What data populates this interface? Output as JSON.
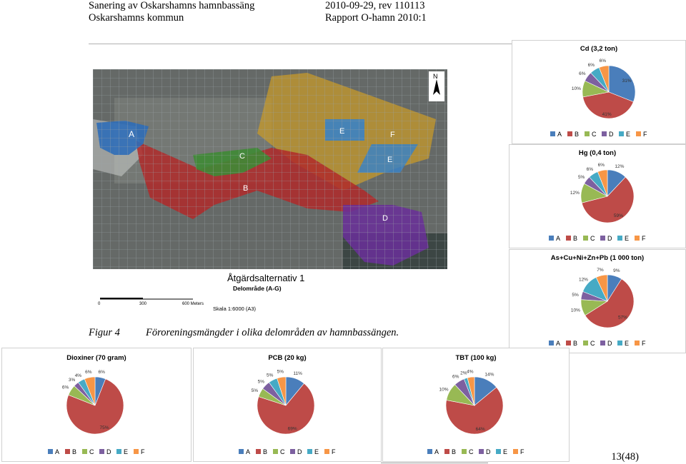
{
  "header": {
    "left_line1": "Sanering av Oskarshamns hamnbassäng",
    "left_line2": "Oskarshamns kommun",
    "right_line1": "2010-09-29, rev 110113",
    "right_line2": "Rapport O-hamn 2010:1"
  },
  "map": {
    "title": "Åtgärdsalternativ 1",
    "subtitle": "Delområde (A-G)",
    "scale_ticks": [
      "0",
      "300",
      "600 Meters"
    ],
    "scale_text": "Skala 1:6000 (A3)",
    "north": "N",
    "area_labels": [
      "A",
      "B",
      "C",
      "D",
      "E",
      "E",
      "F"
    ],
    "colors": {
      "A": "#2f6db8",
      "B": "#b02a2a",
      "C": "#3f8a35",
      "D": "#6a2f9a",
      "E": "#3b82c4",
      "F": "#c79a2a"
    }
  },
  "caption": {
    "label": "Figur 4",
    "text": "Föroreningsmängder i olika delområden av hamnbassängen."
  },
  "legend_letters": [
    "A",
    "B",
    "C",
    "D",
    "E",
    "F"
  ],
  "legend_colors": [
    "#4a7ebb",
    "#be4b48",
    "#98b954",
    "#7d60a0",
    "#46aac5",
    "#f79646"
  ],
  "page_number": "13(48)",
  "chart_data": [
    {
      "type": "pie",
      "title": "Cd (3,2 ton)",
      "categories": [
        "A",
        "B",
        "C",
        "D",
        "E",
        "F"
      ],
      "values": [
        31,
        41,
        10,
        6,
        6,
        6
      ],
      "labels": [
        "31%",
        "41%",
        "10%",
        "6%",
        "6%",
        "6%"
      ]
    },
    {
      "type": "pie",
      "title": "Hg (0,4 ton)",
      "categories": [
        "A",
        "B",
        "C",
        "D",
        "E",
        "F"
      ],
      "values": [
        12,
        59,
        12,
        5,
        6,
        6
      ],
      "labels": [
        "12%",
        "59%",
        "12%",
        "5%",
        "6%",
        "6%"
      ]
    },
    {
      "type": "pie",
      "title": "As+Cu+Ni+Zn+Pb  (1 000 ton)",
      "categories": [
        "A",
        "B",
        "C",
        "D",
        "E",
        "F"
      ],
      "values": [
        9,
        57,
        10,
        5,
        12,
        7
      ],
      "labels": [
        "9%",
        "57%",
        "10%",
        "5%",
        "12%",
        "7%"
      ]
    },
    {
      "type": "pie",
      "title": "Dioxiner (70 gram)",
      "categories": [
        "A",
        "B",
        "C",
        "D",
        "E",
        "F"
      ],
      "values": [
        6,
        75,
        6,
        3,
        4,
        6
      ],
      "labels": [
        "6%",
        "75%",
        "6%",
        "3%",
        "4%",
        "6%"
      ]
    },
    {
      "type": "pie",
      "title": "PCB (20 kg)",
      "categories": [
        "A",
        "B",
        "C",
        "D",
        "E",
        "F"
      ],
      "values": [
        11,
        69,
        5,
        5,
        5,
        5
      ],
      "labels": [
        "11%",
        "69%",
        "5%",
        "5%",
        "5%",
        "5%"
      ]
    },
    {
      "type": "pie",
      "title": "TBT (100 kg)",
      "categories": [
        "A",
        "B",
        "C",
        "D",
        "E",
        "F"
      ],
      "values": [
        14,
        64,
        10,
        6,
        2,
        4
      ],
      "labels": [
        "14%",
        "64%",
        "10%",
        "6%",
        "2%",
        "4%"
      ]
    }
  ]
}
